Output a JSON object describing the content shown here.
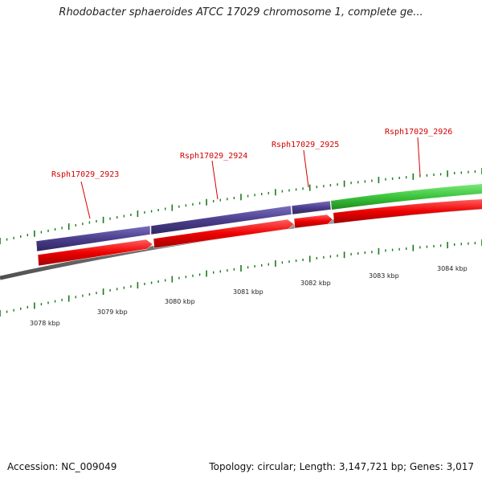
{
  "title": "Rhodobacter sphaeroides ATCC 17029 chromosome 1, complete ge...",
  "footer": {
    "accession": "Accession: NC_009049",
    "summary": "Topology: circular; Length: 3,147,721 bp; Genes: 3,017"
  },
  "genes": [
    {
      "label": "Rsph17029_2923",
      "color": "#d40000"
    },
    {
      "label": "Rsph17029_2924",
      "color": "#d40000"
    },
    {
      "label": "Rsph17029_2925",
      "color": "#d40000"
    },
    {
      "label": "Rsph17029_2926",
      "color": "#d40000"
    }
  ],
  "kbp_ticks": [
    "3078 kbp",
    "3079 kbp",
    "3080 kbp",
    "3081 kbp",
    "3082 kbp",
    "3083 kbp",
    "3084 kbp"
  ],
  "colors": {
    "feature_purple": "#4b3f8c",
    "feature_green": "#3cc43c",
    "cds_red": "#ee0000",
    "backbone": "#7a7a7a",
    "ticks": "#1a7a1a"
  }
}
